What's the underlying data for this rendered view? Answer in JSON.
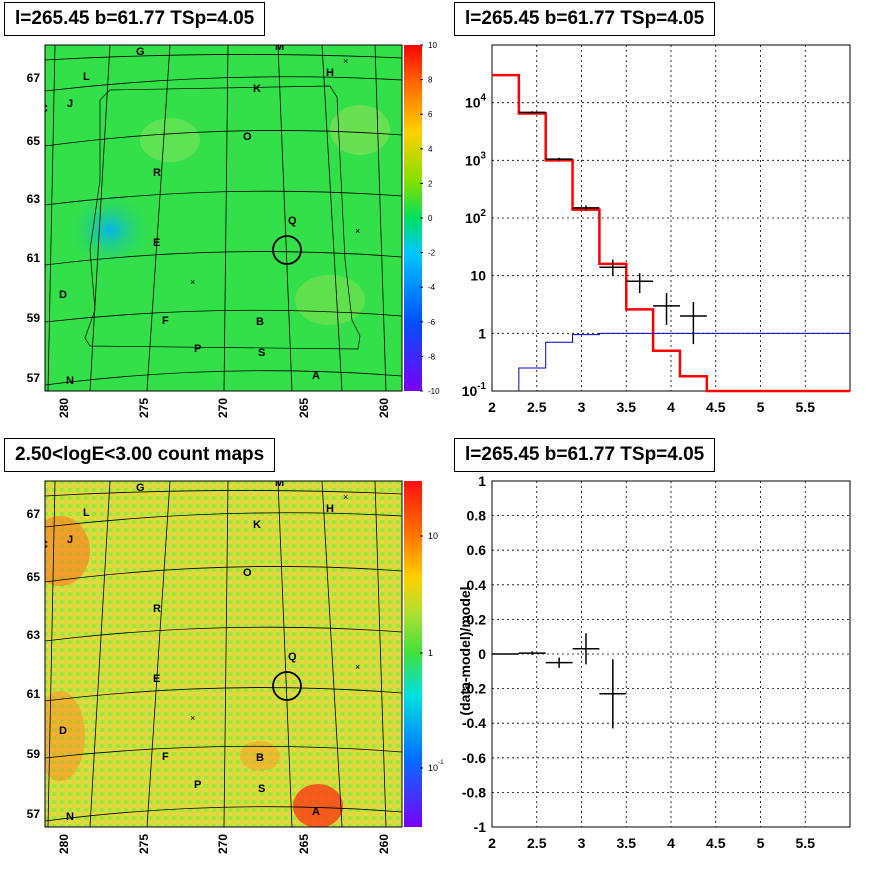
{
  "panels": {
    "top_left_title": "l=265.45 b=61.77 TSp=4.05",
    "top_right_title": "l=265.45 b=61.77 TSp=4.05",
    "bottom_left_title": "2.50<logE<3.00 count maps",
    "bottom_right_title": "l=265.45 b=61.77 TSp=4.05"
  },
  "maps": {
    "lon_ticks": [
      "280",
      "275",
      "270",
      "265",
      "260"
    ],
    "lat_ticks": [
      "67",
      "65",
      "63",
      "61",
      "59",
      "57"
    ],
    "source_labels": [
      "G",
      "M",
      "H",
      "L",
      "K",
      "C",
      "J",
      "O",
      "R",
      "Q",
      "E",
      "D",
      "F",
      "B",
      "P",
      "S",
      "N",
      "A"
    ],
    "residual_colorbar_ticks": [
      "10",
      "8",
      "6",
      "4",
      "2",
      "0",
      "-2",
      "-4",
      "-6",
      "-8",
      "-10"
    ],
    "counts_colorbar_ticks": [
      "10",
      "1",
      "10-1"
    ],
    "colors": {
      "residual_bg": "#33e04a",
      "counts_bg": "#b8e63a",
      "grid": "#000000"
    }
  },
  "chart_data": [
    {
      "type": "line",
      "panel": "spectrum",
      "xlim": [
        2,
        6
      ],
      "ylim": [
        0.1,
        100000
      ],
      "log_y": true,
      "grid": true,
      "x_ticks": [
        "2",
        "2.5",
        "3",
        "3.5",
        "4",
        "4.5",
        "5",
        "5.5"
      ],
      "y_ticks": [
        "10-1",
        "1",
        "10",
        "102",
        "103",
        "104"
      ],
      "series": [
        {
          "color": "#ff0000",
          "style": "step",
          "edges": [
            2.0,
            2.3,
            2.6,
            2.9,
            3.2,
            3.5,
            3.8,
            4.1,
            4.4,
            6.0
          ],
          "values": [
            30000,
            6500,
            1000,
            140,
            16,
            2.6,
            0.5,
            0.18,
            0.1
          ]
        },
        {
          "color": "#0000cc",
          "style": "step",
          "edges": [
            2.3,
            2.6,
            2.9,
            3.2,
            6.0
          ],
          "values": [
            0.25,
            0.7,
            0.95,
            1.0
          ]
        },
        {
          "color": "#000000",
          "style": "errorbar",
          "points": [
            {
              "x": 2.45,
              "xerr": 0.15,
              "y": 6800,
              "ylo": 6500,
              "yhi": 7100
            },
            {
              "x": 2.75,
              "xerr": 0.15,
              "y": 1050,
              "ylo": 990,
              "yhi": 1110
            },
            {
              "x": 3.05,
              "xerr": 0.15,
              "y": 150,
              "ylo": 135,
              "yhi": 165
            },
            {
              "x": 3.35,
              "xerr": 0.15,
              "y": 14,
              "ylo": 10,
              "yhi": 19
            },
            {
              "x": 3.65,
              "xerr": 0.15,
              "y": 8,
              "ylo": 5,
              "yhi": 11
            },
            {
              "x": 3.95,
              "xerr": 0.15,
              "y": 3,
              "ylo": 1.4,
              "yhi": 5
            },
            {
              "x": 4.25,
              "xerr": 0.15,
              "y": 2,
              "ylo": 0.65,
              "yhi": 3.5
            }
          ]
        }
      ]
    },
    {
      "type": "scatter",
      "panel": "residual",
      "ylabel": "(data-model)/model",
      "xlim": [
        2,
        6
      ],
      "ylim": [
        -1,
        1
      ],
      "grid": true,
      "x_ticks": [
        "2",
        "2.5",
        "3",
        "3.5",
        "4",
        "4.5",
        "5",
        "5.5"
      ],
      "y_ticks": [
        "1",
        "0.8",
        "0.6",
        "0.4",
        "0.2",
        "0",
        "-0.2",
        "-0.4",
        "-0.6",
        "-0.8",
        "-1"
      ],
      "points": [
        {
          "x": 2.15,
          "xerr": 0.15,
          "y": 0.0,
          "yerr": 0.003
        },
        {
          "x": 2.45,
          "xerr": 0.15,
          "y": 0.005,
          "yerr": 0.01
        },
        {
          "x": 2.75,
          "xerr": 0.15,
          "y": -0.05,
          "yerr": 0.03
        },
        {
          "x": 3.05,
          "xerr": 0.15,
          "y": 0.03,
          "yerr": 0.09
        },
        {
          "x": 3.35,
          "xerr": 0.15,
          "y": -0.23,
          "yerr": 0.2
        }
      ]
    }
  ]
}
